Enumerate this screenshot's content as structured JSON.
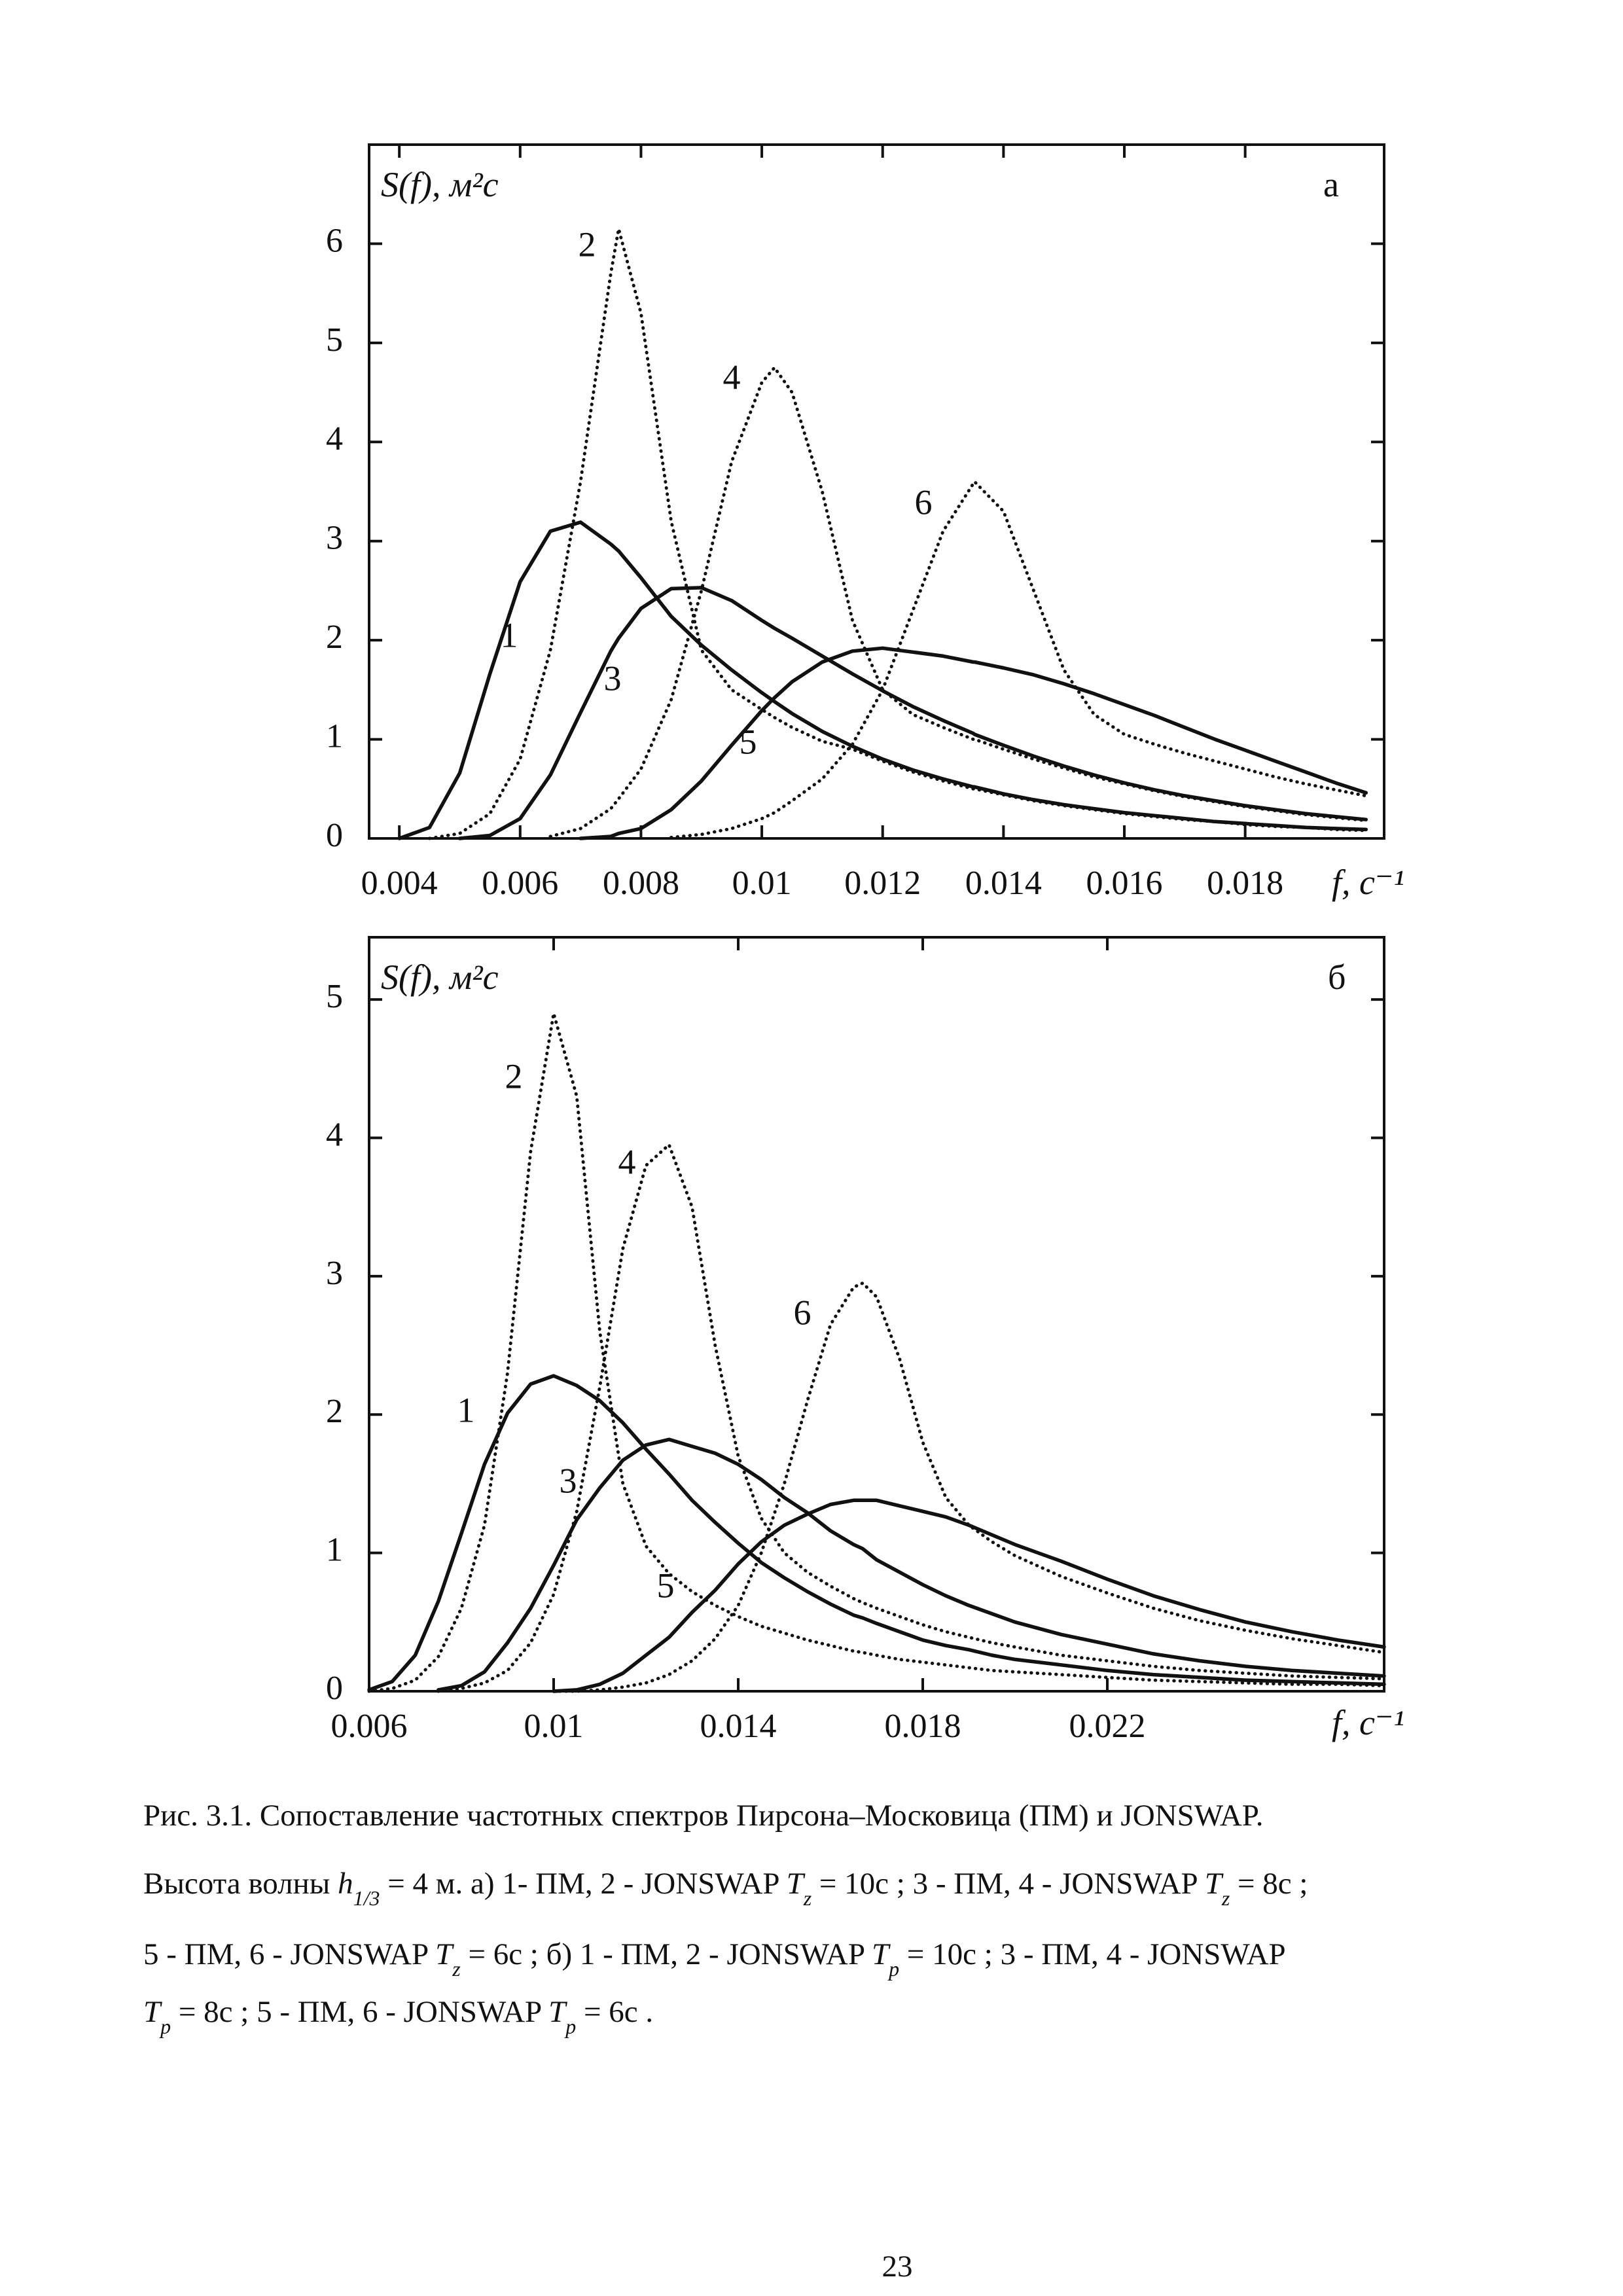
{
  "chart_data": [
    {
      "type": "line",
      "y_label": "S(f), м²с",
      "x_label": "f, c⁻¹",
      "panel_label": "а",
      "xlim": [
        0.0035,
        0.0203
      ],
      "ylim": [
        0,
        7
      ],
      "xticks": [
        0.004,
        0.006,
        0.008,
        0.01,
        0.012,
        0.014,
        0.016,
        0.018
      ],
      "yticks": [
        0,
        1,
        2,
        3,
        4,
        5,
        6
      ],
      "x": [
        0.004,
        0.0045,
        0.005,
        0.0055,
        0.006,
        0.0065,
        0.007,
        0.0075,
        0.00763,
        0.008,
        0.0085,
        0.009,
        0.0095,
        0.01,
        0.01021,
        0.0105,
        0.011,
        0.0115,
        0.012,
        0.0125,
        0.013,
        0.0135,
        0.01352,
        0.014,
        0.0145,
        0.015,
        0.0155,
        0.016,
        0.0165,
        0.017,
        0.0175,
        0.018,
        0.0185,
        0.019,
        0.0195,
        0.02
      ],
      "series": [
        {
          "name": "1",
          "color": "#111111",
          "style": "solid",
          "values": [
            0.0,
            0.11,
            0.66,
            1.66,
            2.59,
            3.1,
            3.19,
            2.97,
            2.9,
            2.63,
            2.24,
            1.95,
            1.7,
            1.47,
            1.38,
            1.26,
            1.08,
            0.93,
            0.8,
            0.69,
            0.6,
            0.52,
            0.52,
            0.45,
            0.39,
            0.34,
            0.3,
            0.26,
            0.23,
            0.2,
            0.17,
            0.15,
            0.13,
            0.11,
            0.1,
            0.09
          ]
        },
        {
          "name": "2",
          "color": "#111111",
          "style": "dotted",
          "values": [
            null,
            0.0,
            0.05,
            0.25,
            0.8,
            1.9,
            3.6,
            5.7,
            6.15,
            5.3,
            3.2,
            1.9,
            1.5,
            1.3,
            1.22,
            1.12,
            0.98,
            0.9,
            0.78,
            0.67,
            0.58,
            0.5,
            0.5,
            0.44,
            0.38,
            0.33,
            0.29,
            0.25,
            0.22,
            0.19,
            0.17,
            0.14,
            0.12,
            0.11,
            0.09,
            0.08
          ]
        },
        {
          "name": "3",
          "color": "#111111",
          "style": "solid",
          "values": [
            null,
            null,
            0.0,
            0.03,
            0.2,
            0.64,
            1.27,
            1.89,
            2.02,
            2.32,
            2.52,
            2.53,
            2.4,
            2.2,
            2.12,
            2.02,
            1.84,
            1.66,
            1.49,
            1.33,
            1.19,
            1.06,
            1.05,
            0.94,
            0.83,
            0.73,
            0.64,
            0.56,
            0.49,
            0.43,
            0.38,
            0.33,
            0.29,
            0.25,
            0.22,
            0.19
          ]
        },
        {
          "name": "4",
          "color": "#111111",
          "style": "dotted",
          "values": [
            null,
            null,
            null,
            null,
            null,
            0.02,
            0.1,
            0.3,
            0.4,
            0.7,
            1.4,
            2.5,
            3.8,
            4.6,
            4.75,
            4.5,
            3.5,
            2.2,
            1.5,
            1.25,
            1.12,
            1.0,
            1.0,
            0.9,
            0.8,
            0.71,
            0.62,
            0.55,
            0.48,
            0.42,
            0.37,
            0.32,
            0.28,
            0.24,
            0.21,
            0.18
          ]
        },
        {
          "name": "5",
          "color": "#111111",
          "style": "solid",
          "values": [
            null,
            null,
            null,
            null,
            null,
            null,
            0.0,
            0.02,
            0.05,
            0.1,
            0.29,
            0.58,
            0.94,
            1.29,
            1.42,
            1.58,
            1.78,
            1.89,
            1.92,
            1.88,
            1.84,
            1.78,
            1.78,
            1.72,
            1.65,
            1.56,
            1.46,
            1.35,
            1.24,
            1.12,
            1.0,
            0.89,
            0.78,
            0.67,
            0.56,
            0.46
          ]
        },
        {
          "name": "6",
          "color": "#111111",
          "style": "dotted",
          "values": [
            null,
            null,
            null,
            null,
            null,
            null,
            null,
            null,
            null,
            null,
            0.01,
            0.04,
            0.1,
            0.2,
            0.26,
            0.38,
            0.6,
            0.95,
            1.5,
            2.3,
            3.1,
            3.58,
            3.6,
            3.3,
            2.5,
            1.7,
            1.25,
            1.05,
            0.95,
            0.86,
            0.78,
            0.7,
            0.62,
            0.55,
            0.49,
            0.43
          ]
        }
      ]
    },
    {
      "type": "line",
      "y_label": "S(f), м²с",
      "x_label": "f, c⁻¹",
      "panel_label": "б",
      "xlim": [
        0.006,
        0.028
      ],
      "ylim": [
        0,
        5.45
      ],
      "xticks": [
        0.006,
        0.01,
        0.014,
        0.018,
        0.022
      ],
      "yticks": [
        0,
        1,
        2,
        3,
        4,
        5
      ],
      "x": [
        0.006,
        0.0065,
        0.007,
        0.0075,
        0.008,
        0.0085,
        0.009,
        0.0095,
        0.01,
        0.0105,
        0.011,
        0.0115,
        0.012,
        0.0125,
        0.013,
        0.0135,
        0.014,
        0.0145,
        0.015,
        0.0155,
        0.016,
        0.0165,
        0.0167,
        0.017,
        0.0175,
        0.018,
        0.0185,
        0.019,
        0.0195,
        0.02,
        0.021,
        0.022,
        0.023,
        0.024,
        0.025,
        0.026,
        0.027,
        0.028
      ],
      "series": [
        {
          "name": "1",
          "color": "#111111",
          "style": "solid",
          "values": [
            0.01,
            0.07,
            0.26,
            0.65,
            1.14,
            1.64,
            2.01,
            2.22,
            2.28,
            2.21,
            2.1,
            1.94,
            1.75,
            1.57,
            1.38,
            1.22,
            1.07,
            0.93,
            0.82,
            0.72,
            0.63,
            0.55,
            0.53,
            0.49,
            0.43,
            0.37,
            0.33,
            0.3,
            0.26,
            0.23,
            0.19,
            0.15,
            0.12,
            0.1,
            0.08,
            0.07,
            0.06,
            0.05
          ]
        },
        {
          "name": "2",
          "color": "#111111",
          "style": "dotted",
          "values": [
            0.0,
            0.02,
            0.08,
            0.25,
            0.6,
            1.2,
            2.3,
            3.9,
            4.9,
            4.3,
            2.6,
            1.5,
            1.05,
            0.85,
            0.72,
            0.62,
            0.54,
            0.47,
            0.42,
            0.37,
            0.33,
            0.29,
            0.28,
            0.26,
            0.23,
            0.21,
            0.19,
            0.17,
            0.15,
            0.14,
            0.12,
            0.1,
            0.08,
            0.07,
            0.06,
            0.05,
            0.05,
            0.04
          ]
        },
        {
          "name": "3",
          "color": "#111111",
          "style": "solid",
          "values": [
            null,
            null,
            null,
            0.01,
            0.04,
            0.14,
            0.35,
            0.6,
            0.91,
            1.24,
            1.47,
            1.67,
            1.78,
            1.82,
            1.77,
            1.72,
            1.64,
            1.53,
            1.4,
            1.29,
            1.16,
            1.06,
            1.03,
            0.95,
            0.86,
            0.77,
            0.69,
            0.62,
            0.56,
            0.5,
            0.41,
            0.34,
            0.27,
            0.22,
            0.18,
            0.15,
            0.13,
            0.11
          ]
        },
        {
          "name": "4",
          "color": "#111111",
          "style": "dotted",
          "values": [
            null,
            null,
            null,
            0.0,
            0.02,
            0.06,
            0.15,
            0.35,
            0.7,
            1.3,
            2.2,
            3.2,
            3.8,
            3.95,
            3.5,
            2.5,
            1.7,
            1.25,
            1.0,
            0.86,
            0.76,
            0.67,
            0.64,
            0.6,
            0.54,
            0.48,
            0.43,
            0.39,
            0.35,
            0.32,
            0.26,
            0.22,
            0.18,
            0.15,
            0.13,
            0.11,
            0.1,
            0.09
          ]
        },
        {
          "name": "5",
          "color": "#111111",
          "style": "solid",
          "values": [
            null,
            null,
            null,
            null,
            null,
            null,
            null,
            null,
            0.0,
            0.01,
            0.05,
            0.13,
            0.26,
            0.39,
            0.57,
            0.73,
            0.92,
            1.08,
            1.2,
            1.28,
            1.35,
            1.38,
            1.38,
            1.38,
            1.34,
            1.3,
            1.26,
            1.2,
            1.13,
            1.06,
            0.94,
            0.81,
            0.69,
            0.59,
            0.5,
            0.43,
            0.37,
            0.32
          ]
        },
        {
          "name": "6",
          "color": "#111111",
          "style": "dotted",
          "values": [
            null,
            null,
            null,
            null,
            null,
            null,
            null,
            null,
            0.0,
            0.0,
            0.01,
            0.03,
            0.06,
            0.12,
            0.22,
            0.38,
            0.62,
            1.0,
            1.5,
            2.1,
            2.65,
            2.92,
            2.95,
            2.85,
            2.4,
            1.8,
            1.4,
            1.2,
            1.08,
            0.98,
            0.83,
            0.71,
            0.6,
            0.51,
            0.44,
            0.38,
            0.33,
            0.28
          ]
        }
      ]
    }
  ],
  "caption": [
    [
      "Рис. 3.1. Сопоставление частотных спектров Пирсона–Московица (ПМ) и JONSWAP."
    ],
    [
      "Высота волны ",
      {
        "math": "h",
        "sub": "1/3"
      },
      " = 4 м. а) 1- ПМ, 2 - JONSWAP ",
      {
        "math": "T",
        "sub": "z"
      },
      " = 10c ; 3 - ПМ, 4 - JONSWAP ",
      {
        "math": "T",
        "sub": "z"
      },
      " = 8c ;"
    ],
    [
      "5 - ПМ, 6 - JONSWAP ",
      {
        "math": "T",
        "sub": "z"
      },
      " = 6c ; б) 1 - ПМ, 2 - JONSWAP ",
      {
        "math": "T",
        "sub": "p"
      },
      " = 10c ; 3 - ПМ, 4 - JONSWAP"
    ],
    [
      {
        "math": "T",
        "sub": "p"
      },
      " = 8c ; 5 - ПМ, 6 - JONSWAP ",
      {
        "math": "T",
        "sub": "p"
      },
      " = 6c ."
    ]
  ],
  "page_number": "23"
}
